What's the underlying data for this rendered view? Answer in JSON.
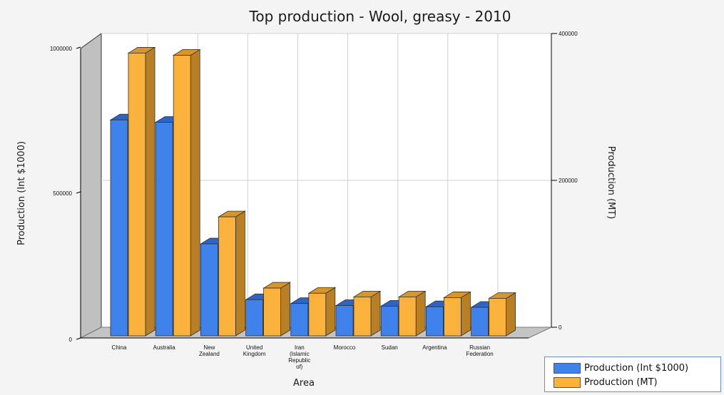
{
  "chart_data": {
    "type": "bar",
    "title": "Top production - Wool, greasy - 2010",
    "xlabel": "Area",
    "ylabel_left": "Production (Int $1000)",
    "ylabel_right": "Production (MT)",
    "categories": [
      "China",
      "Australia",
      "New Zealand",
      "United Kingdom",
      "Iran (Islamic Republic of)",
      "Morocco",
      "Sudan",
      "Argentina",
      "Russian Federation"
    ],
    "series": [
      {
        "name": "Production (Int $1000)",
        "axis": "left",
        "color": "#3f82ec",
        "values": [
          735000,
          727000,
          313000,
          123000,
          110000,
          103000,
          101000,
          99000,
          97000
        ]
      },
      {
        "name": "Production (MT)",
        "axis": "right",
        "color": "#fbb23c",
        "values": [
          385000,
          382000,
          162000,
          65000,
          58000,
          53000,
          53000,
          52000,
          51000
        ]
      }
    ],
    "ylim_left": [
      0,
      1000000
    ],
    "ylim_right": [
      0,
      400000
    ],
    "left_ticks": [
      "0",
      "500000",
      "1000000"
    ],
    "right_ticks": [
      "0",
      "200000",
      "400000"
    ],
    "grid": true,
    "legend_position": "bottom-right"
  },
  "colors": {
    "blue_side": "#2459b0",
    "blue_top": "#2e64c4",
    "orange_side": "#b87f24",
    "orange_top": "#d8952c"
  }
}
